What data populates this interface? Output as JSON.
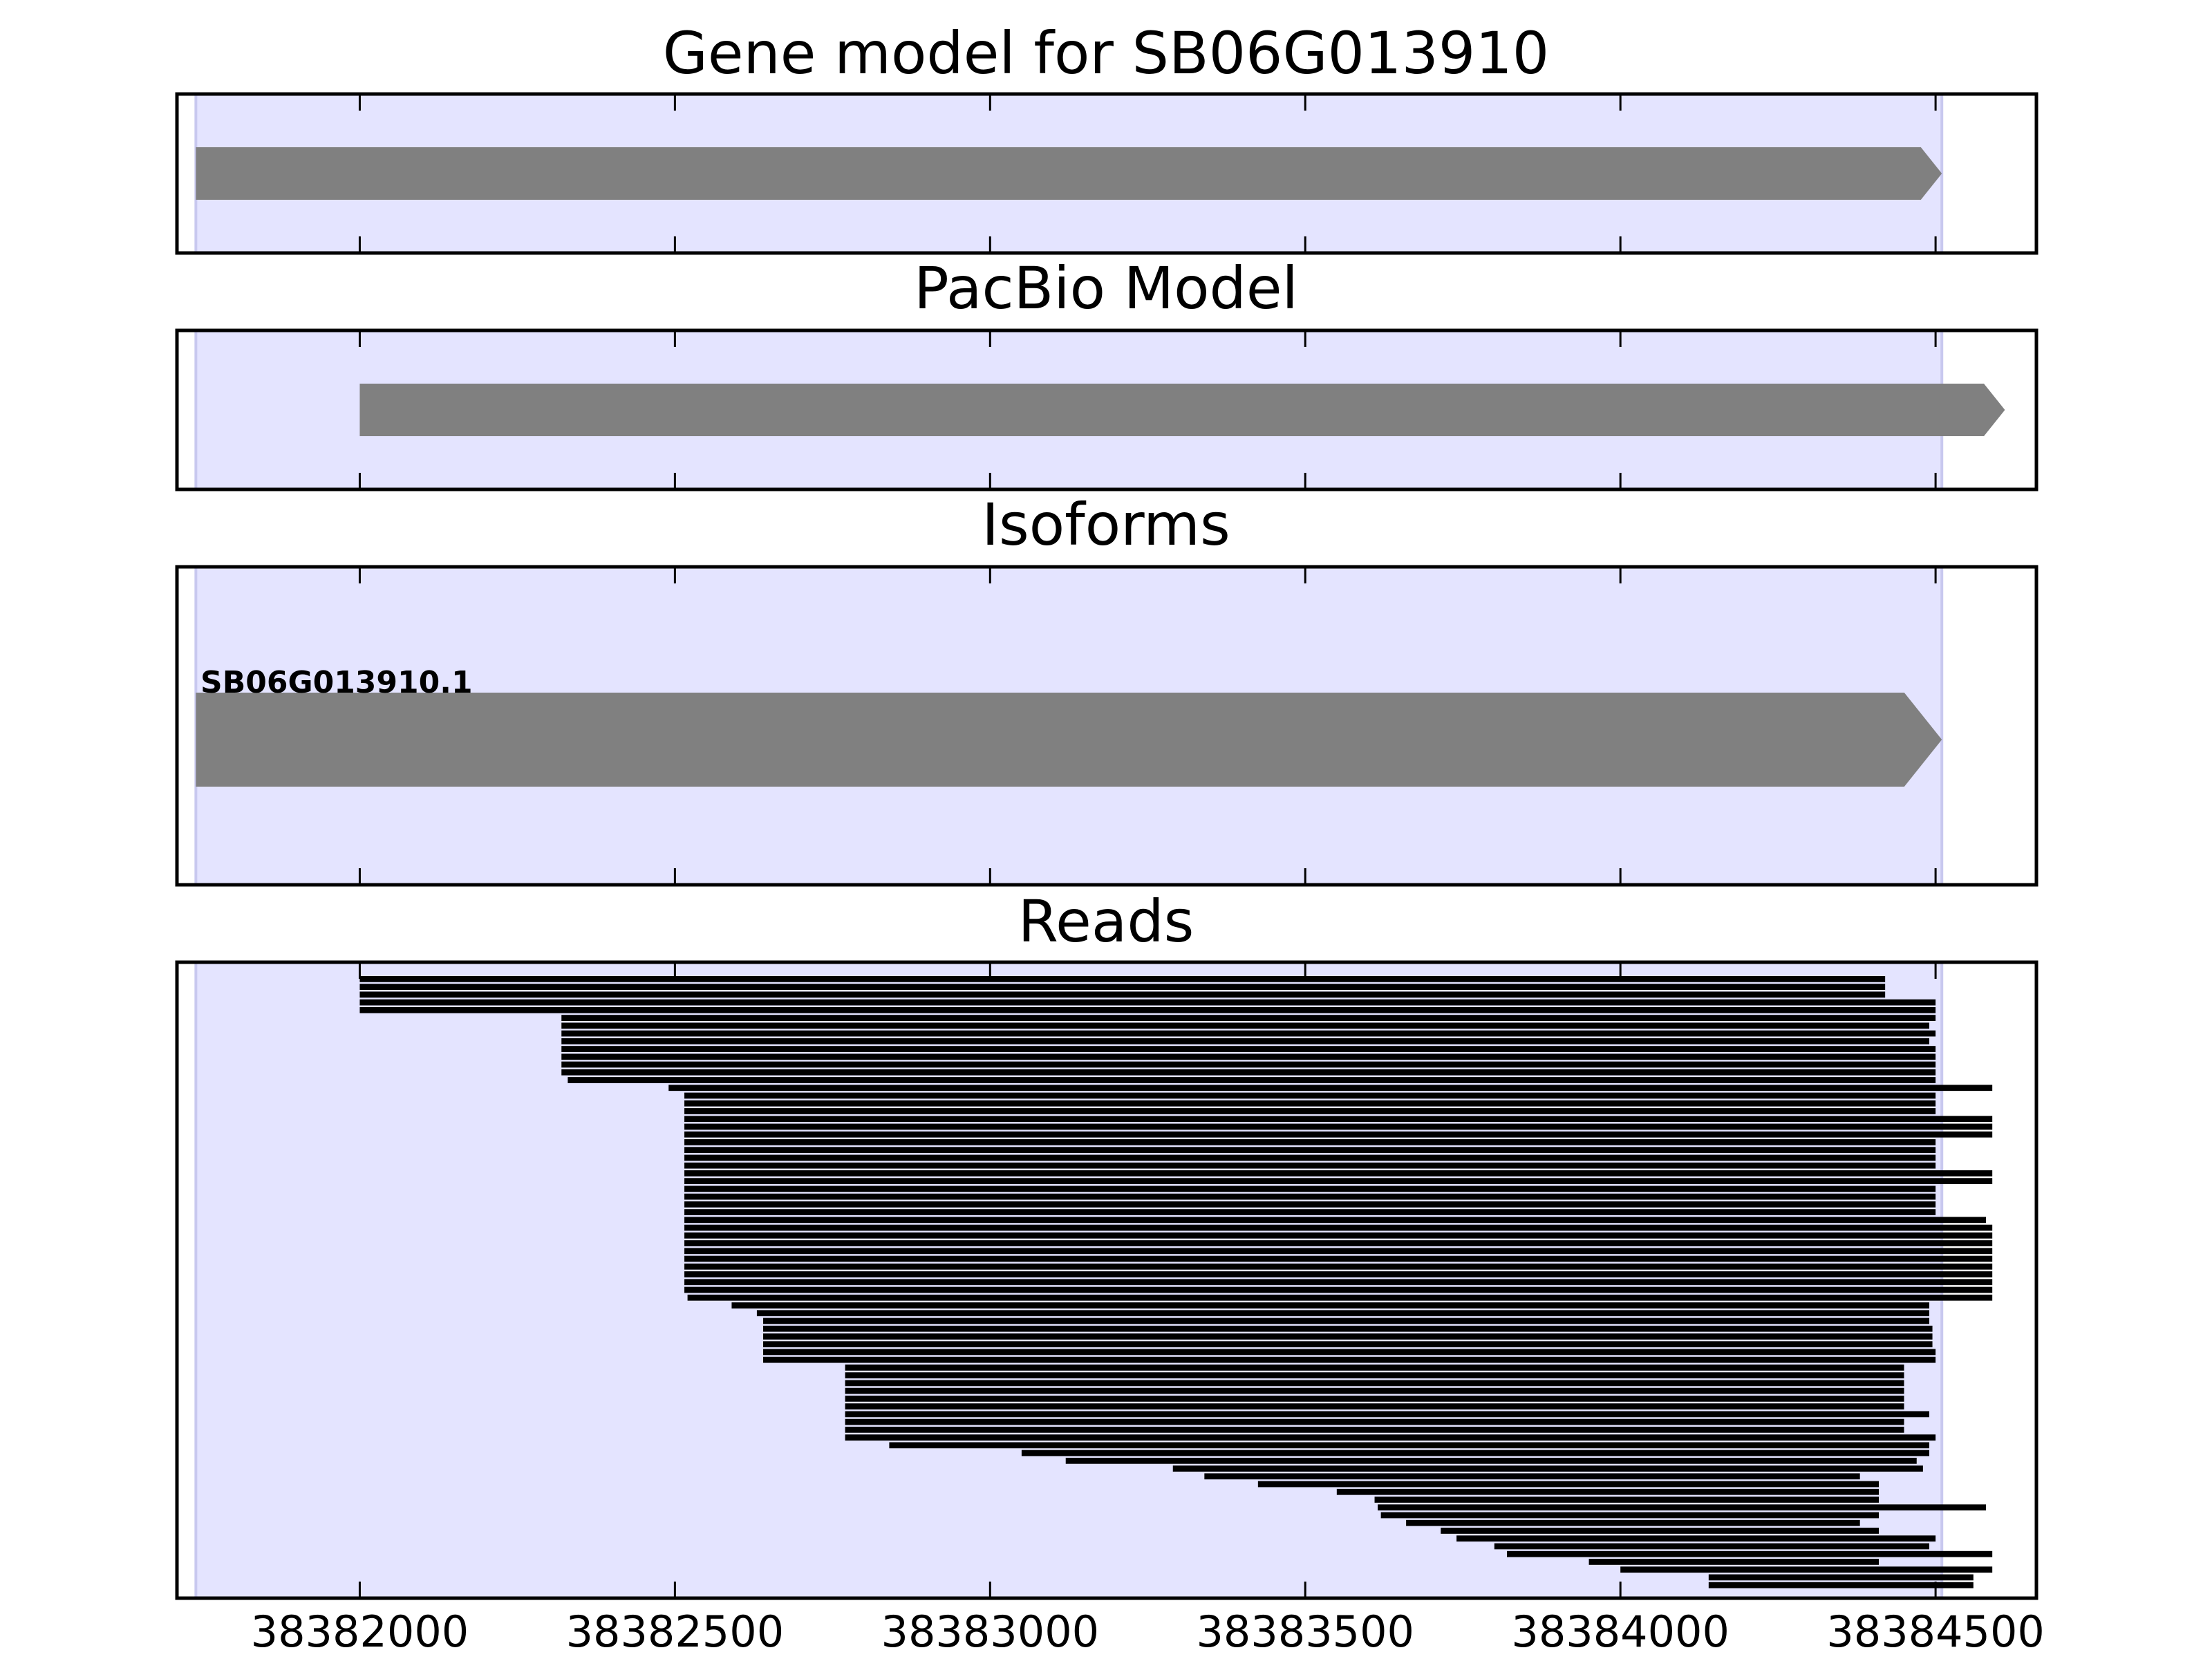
{
  "chart_data": {
    "type": "gene_track",
    "x_domain": [
      38381710,
      38384660
    ],
    "x_ticks": [
      "38382000",
      "38382500",
      "38383000",
      "38383500",
      "38384000",
      "38384500"
    ],
    "gene_region": [
      38381740,
      38384510
    ],
    "panels": [
      {
        "id": "gene-model",
        "title": "Gene model for SB06G013910",
        "features": [
          {
            "start": 38381740,
            "end": 38384510,
            "strand": "+"
          }
        ]
      },
      {
        "id": "pacbio-model",
        "title": "PacBio Model",
        "features": [
          {
            "start": 38382000,
            "end": 38384610,
            "strand": "+"
          }
        ]
      },
      {
        "id": "isoforms",
        "title": "Isoforms",
        "features": [
          {
            "label": "SB06G013910.1",
            "start": 38381740,
            "end": 38384510,
            "strand": "+"
          }
        ]
      },
      {
        "id": "reads",
        "title": "Reads",
        "reads": [
          [
            38382000,
            38384420
          ],
          [
            38382000,
            38384420
          ],
          [
            38382000,
            38384420
          ],
          [
            38382000,
            38384500
          ],
          [
            38382000,
            38384500
          ],
          [
            38382320,
            38384500
          ],
          [
            38382320,
            38384490
          ],
          [
            38382320,
            38384500
          ],
          [
            38382320,
            38384490
          ],
          [
            38382320,
            38384500
          ],
          [
            38382320,
            38384500
          ],
          [
            38382320,
            38384500
          ],
          [
            38382320,
            38384500
          ],
          [
            38382330,
            38384500
          ],
          [
            38382490,
            38384590
          ],
          [
            38382515,
            38384500
          ],
          [
            38382515,
            38384500
          ],
          [
            38382515,
            38384500
          ],
          [
            38382515,
            38384590
          ],
          [
            38382515,
            38384590
          ],
          [
            38382515,
            38384590
          ],
          [
            38382515,
            38384500
          ],
          [
            38382515,
            38384500
          ],
          [
            38382515,
            38384500
          ],
          [
            38382515,
            38384500
          ],
          [
            38382515,
            38384590
          ],
          [
            38382515,
            38384590
          ],
          [
            38382515,
            38384500
          ],
          [
            38382515,
            38384500
          ],
          [
            38382515,
            38384500
          ],
          [
            38382515,
            38384500
          ],
          [
            38382515,
            38384580
          ],
          [
            38382515,
            38384590
          ],
          [
            38382515,
            38384590
          ],
          [
            38382515,
            38384590
          ],
          [
            38382515,
            38384590
          ],
          [
            38382515,
            38384590
          ],
          [
            38382515,
            38384590
          ],
          [
            38382515,
            38384590
          ],
          [
            38382515,
            38384590
          ],
          [
            38382515,
            38384590
          ],
          [
            38382520,
            38384590
          ],
          [
            38382590,
            38384490
          ],
          [
            38382630,
            38384490
          ],
          [
            38382640,
            38384490
          ],
          [
            38382640,
            38384495
          ],
          [
            38382640,
            38384495
          ],
          [
            38382640,
            38384495
          ],
          [
            38382640,
            38384500
          ],
          [
            38382640,
            38384500
          ],
          [
            38382770,
            38384450
          ],
          [
            38382770,
            38384450
          ],
          [
            38382770,
            38384450
          ],
          [
            38382770,
            38384450
          ],
          [
            38382770,
            38384450
          ],
          [
            38382770,
            38384450
          ],
          [
            38382770,
            38384490
          ],
          [
            38382770,
            38384450
          ],
          [
            38382770,
            38384450
          ],
          [
            38382770,
            38384500
          ],
          [
            38382840,
            38384490
          ],
          [
            38383050,
            38384490
          ],
          [
            38383120,
            38384470
          ],
          [
            38383290,
            38384480
          ],
          [
            38383340,
            38384380
          ],
          [
            38383425,
            38384410
          ],
          [
            38383550,
            38384410
          ],
          [
            38383610,
            38384410
          ],
          [
            38383615,
            38384580
          ],
          [
            38383620,
            38384410
          ],
          [
            38383660,
            38384380
          ],
          [
            38383715,
            38384410
          ],
          [
            38383740,
            38384500
          ],
          [
            38383800,
            38384490
          ],
          [
            38383820,
            38384590
          ],
          [
            38383950,
            38384410
          ],
          [
            38384000,
            38384590
          ],
          [
            38384140,
            38384560
          ],
          [
            38384140,
            38384560
          ]
        ]
      }
    ]
  }
}
